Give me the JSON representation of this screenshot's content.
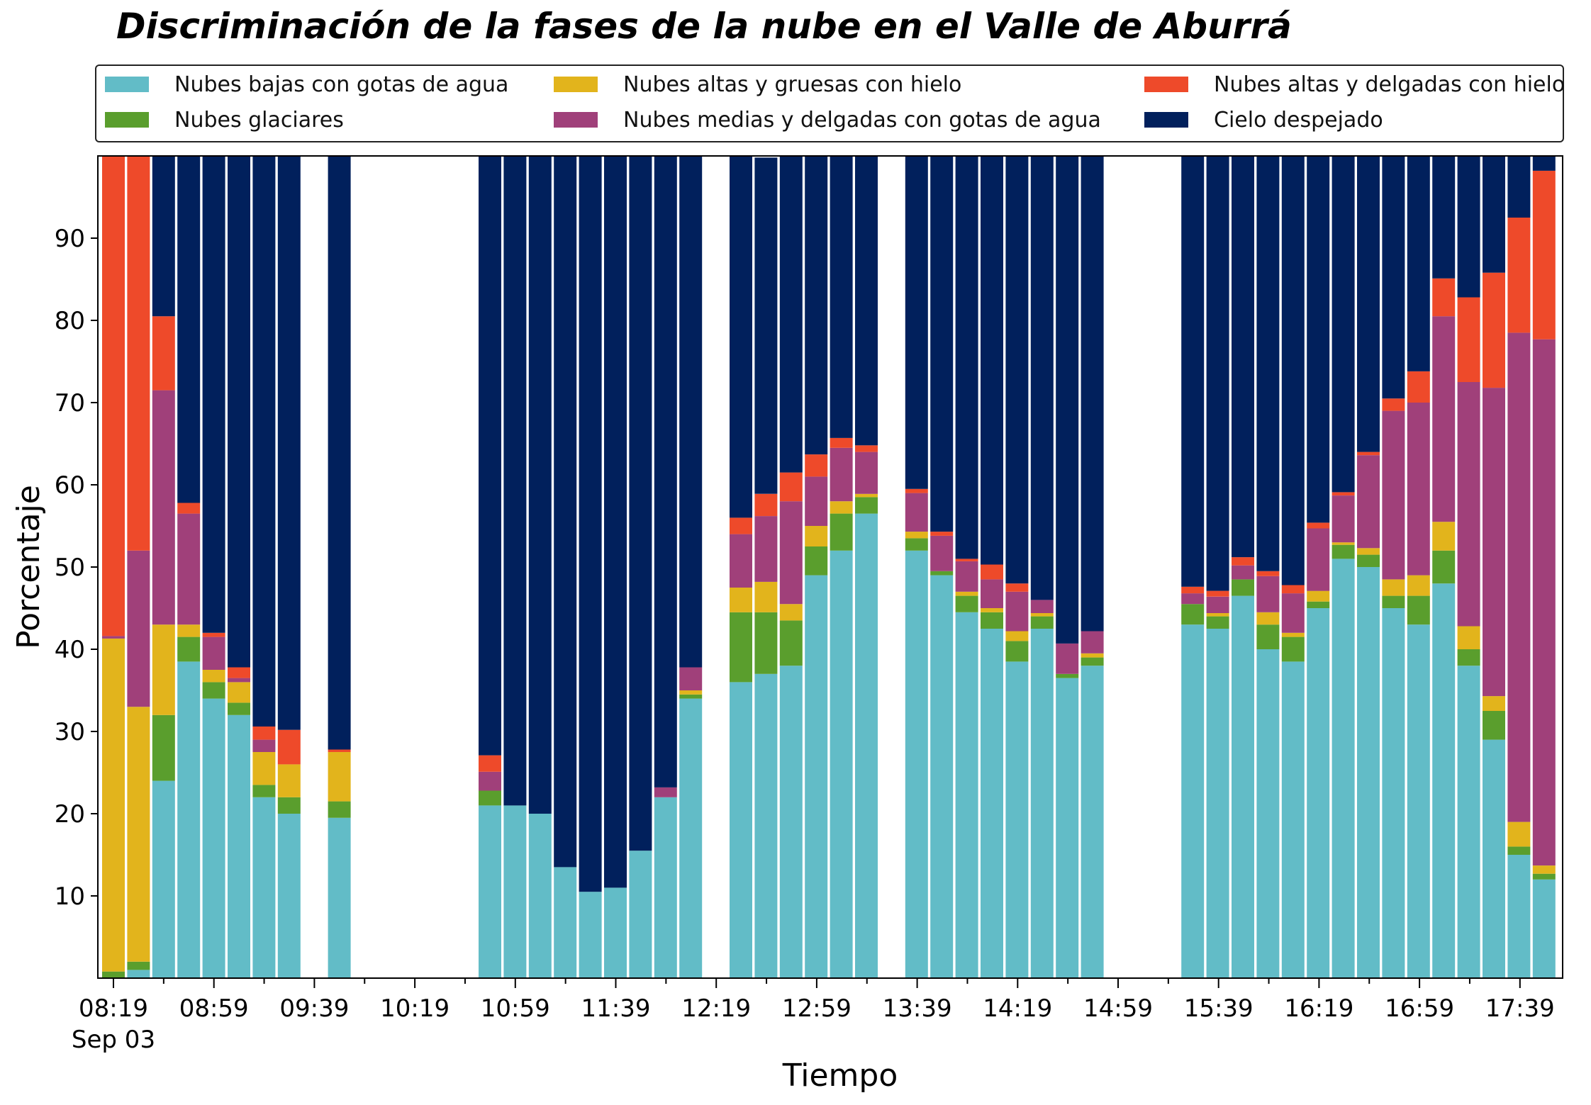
{
  "chart_data": {
    "type": "bar",
    "stacked": true,
    "title": "Discriminación de la fases de la nube en el Valle de Aburrá",
    "xlabel": "Tiempo",
    "ylabel": "Porcentaje",
    "ylim": [
      0,
      100
    ],
    "yticks": [
      10,
      20,
      30,
      40,
      50,
      60,
      70,
      80,
      90
    ],
    "x_tick_labels": [
      "08:19",
      "08:59",
      "09:39",
      "10:19",
      "10:59",
      "11:39",
      "12:19",
      "12:59",
      "13:39",
      "14:19",
      "14:59",
      "15:39",
      "16:19",
      "16:59",
      "17:39"
    ],
    "x_sublabel": "Sep 03",
    "legend_placement": "top",
    "grid": false,
    "series": [
      {
        "name": "Nubes bajas con gotas de agua",
        "color": "#62bcc7",
        "values": [
          0,
          1,
          24,
          38.5,
          34,
          32,
          22,
          20,
          null,
          19.5,
          null,
          null,
          null,
          null,
          null,
          21,
          21,
          20,
          13.5,
          10.5,
          11,
          15.5,
          22,
          34,
          null,
          36,
          37,
          38,
          49,
          52,
          56.5,
          null,
          52,
          49,
          44.5,
          42.5,
          38.5,
          42.5,
          36.5,
          38,
          null,
          null,
          null,
          43,
          42.5,
          46.5,
          40,
          38.5,
          45,
          51,
          50,
          45,
          43,
          48,
          38,
          29,
          15,
          12
        ]
      },
      {
        "name": "Nubes glaciares",
        "color": "#5a9e2d",
        "values": [
          0.8,
          1,
          8,
          3,
          2,
          1.5,
          1.5,
          2,
          null,
          2,
          null,
          null,
          null,
          null,
          null,
          1.8,
          0,
          0,
          0,
          0,
          0,
          0,
          0,
          0.5,
          null,
          8.5,
          7.5,
          5.5,
          3.5,
          4.5,
          2,
          null,
          1.5,
          0.5,
          2,
          2,
          2.5,
          1.5,
          0.5,
          1,
          null,
          null,
          null,
          2.5,
          1.5,
          2,
          3,
          3,
          0.8,
          1.7,
          1.5,
          1.5,
          3.5,
          4,
          2,
          3.5,
          1,
          0.7
        ]
      },
      {
        "name": "Nubes altas y gruesas con hielo",
        "color": "#e2b41c",
        "values": [
          40.5,
          31,
          11,
          1.5,
          1.5,
          2.5,
          4,
          4,
          null,
          6,
          null,
          null,
          null,
          null,
          null,
          0,
          0,
          0,
          0,
          0,
          0,
          0,
          0,
          0.5,
          null,
          3,
          3.7,
          2,
          2.5,
          1.5,
          0.4,
          null,
          0.8,
          0,
          0.5,
          0.5,
          1.2,
          0.4,
          0,
          0.5,
          null,
          null,
          null,
          0,
          0.4,
          0,
          1.5,
          0.5,
          1.3,
          0.3,
          0.8,
          2,
          2.5,
          3.5,
          2.8,
          1.8,
          3,
          1
        ]
      },
      {
        "name": "Nubes medias y delgadas con gotas de agua",
        "color": "#a0407a",
        "values": [
          0.3,
          19,
          28.5,
          13.5,
          4,
          0.5,
          1.5,
          0,
          null,
          0,
          null,
          null,
          null,
          null,
          null,
          2.3,
          0,
          0,
          0,
          0,
          0,
          0,
          1.2,
          2.8,
          null,
          6.5,
          8,
          12.5,
          6,
          6.5,
          5.1,
          null,
          4.7,
          4.3,
          3.7,
          3.5,
          4.8,
          1.6,
          3.7,
          2.7,
          null,
          null,
          null,
          1.3,
          2,
          1.7,
          4.4,
          4.8,
          7.6,
          5.7,
          11.3,
          20.5,
          21,
          25,
          29.7,
          37.5,
          59.5,
          64
        ]
      },
      {
        "name": "Nubes altas y delgadas con hielo",
        "color": "#ee4a2a",
        "values": [
          58.4,
          48,
          9,
          1.3,
          0.5,
          1.3,
          1.6,
          4.2,
          null,
          0.3,
          null,
          null,
          null,
          null,
          null,
          2,
          0,
          0,
          0,
          0,
          0,
          0,
          0,
          0,
          null,
          2,
          2.7,
          3.5,
          2.7,
          1.2,
          0.8,
          null,
          0.5,
          0.5,
          0.3,
          1.8,
          1,
          0,
          0,
          0,
          null,
          null,
          null,
          0.8,
          0.7,
          1,
          0.6,
          1,
          0.7,
          0.4,
          0.4,
          1.5,
          3.8,
          4.6,
          10.3,
          14,
          14,
          20.5
        ]
      },
      {
        "name": "Cielo despejado",
        "color": "#01205c",
        "values": [
          0,
          0.5,
          19.5,
          42.2,
          58,
          62.2,
          69.4,
          69.8,
          null,
          72.2,
          null,
          null,
          null,
          null,
          null,
          72.9,
          79,
          80,
          86.5,
          89.5,
          89,
          84.5,
          76.8,
          62.2,
          null,
          44,
          40.9,
          40.5,
          36.3,
          34.3,
          35.2,
          null,
          40.5,
          45.7,
          49,
          49.7,
          52,
          54,
          59.3,
          57.8,
          null,
          null,
          null,
          52.4,
          52.9,
          48.8,
          50.5,
          52.2,
          44.6,
          40.9,
          36,
          29.5,
          26.2,
          14.9,
          17.2,
          14.2,
          7.5,
          1.8
        ]
      }
    ]
  }
}
